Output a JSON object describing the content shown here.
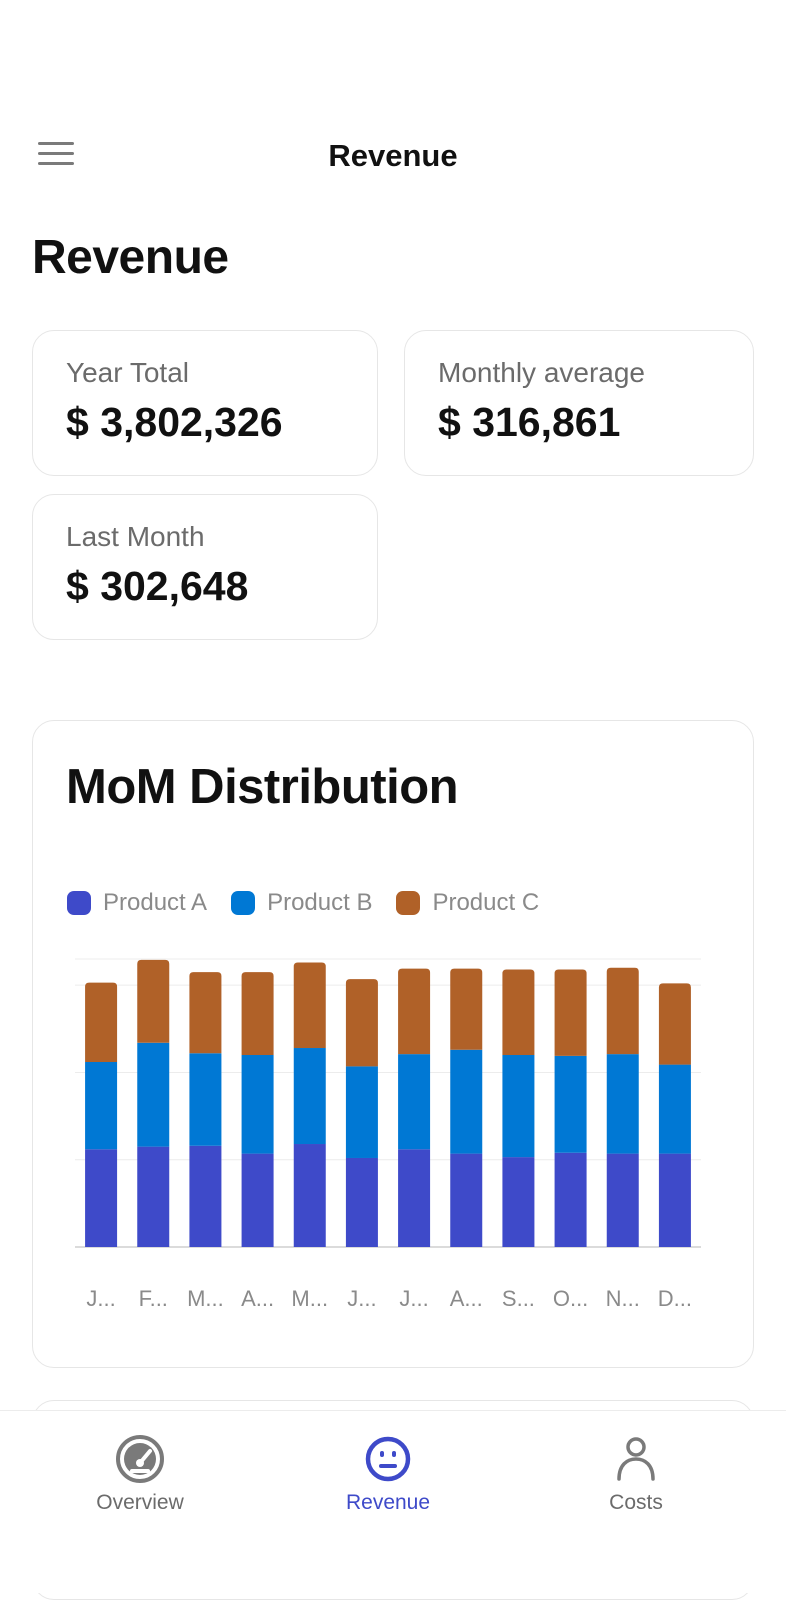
{
  "header": {
    "title": "Revenue",
    "menu_icon": "hamburger-menu-icon"
  },
  "page": {
    "title": "Revenue"
  },
  "stats": [
    {
      "label": "Year Total",
      "value": "$ 3,802,326"
    },
    {
      "label": "Monthly average",
      "value": "$ 316,861"
    },
    {
      "label": "Last Month",
      "value": "$ 302,648"
    }
  ],
  "chart_card": {
    "title": "MoM Distribution"
  },
  "chart_data": {
    "type": "bar",
    "stacked": true,
    "title": "MoM Distribution",
    "xlabel": "",
    "ylabel": "",
    "ylim": [
      0,
      330000
    ],
    "grid": true,
    "legend_position": "top-left",
    "category_labels": [
      "J...",
      "F...",
      "M...",
      "A...",
      "M...",
      "J...",
      "J...",
      "A...",
      "S...",
      "O...",
      "N...",
      "D..."
    ],
    "series": [
      {
        "name": "Product A",
        "color": "#3e4ac9",
        "values": [
          112000,
          115000,
          116000,
          107000,
          118000,
          102000,
          112000,
          107000,
          103000,
          108000,
          107000,
          107000
        ]
      },
      {
        "name": "Product B",
        "color": "#0078d4",
        "values": [
          100000,
          119000,
          106000,
          113000,
          110000,
          105000,
          109000,
          119000,
          117000,
          111000,
          114000,
          102000
        ]
      },
      {
        "name": "Product C",
        "color": "#b06128",
        "values": [
          91000,
          95000,
          93000,
          95000,
          98000,
          100000,
          98000,
          93000,
          98000,
          99000,
          99000,
          93000
        ]
      }
    ]
  },
  "bottom_nav": {
    "items": [
      {
        "label": "Overview",
        "icon": "gauge-icon",
        "active": false
      },
      {
        "label": "Revenue",
        "icon": "neutral-face-icon",
        "active": true
      },
      {
        "label": "Costs",
        "icon": "person-icon",
        "active": false
      }
    ],
    "active_color": "#3e4ac9",
    "inactive_color": "#7a7a7a"
  }
}
